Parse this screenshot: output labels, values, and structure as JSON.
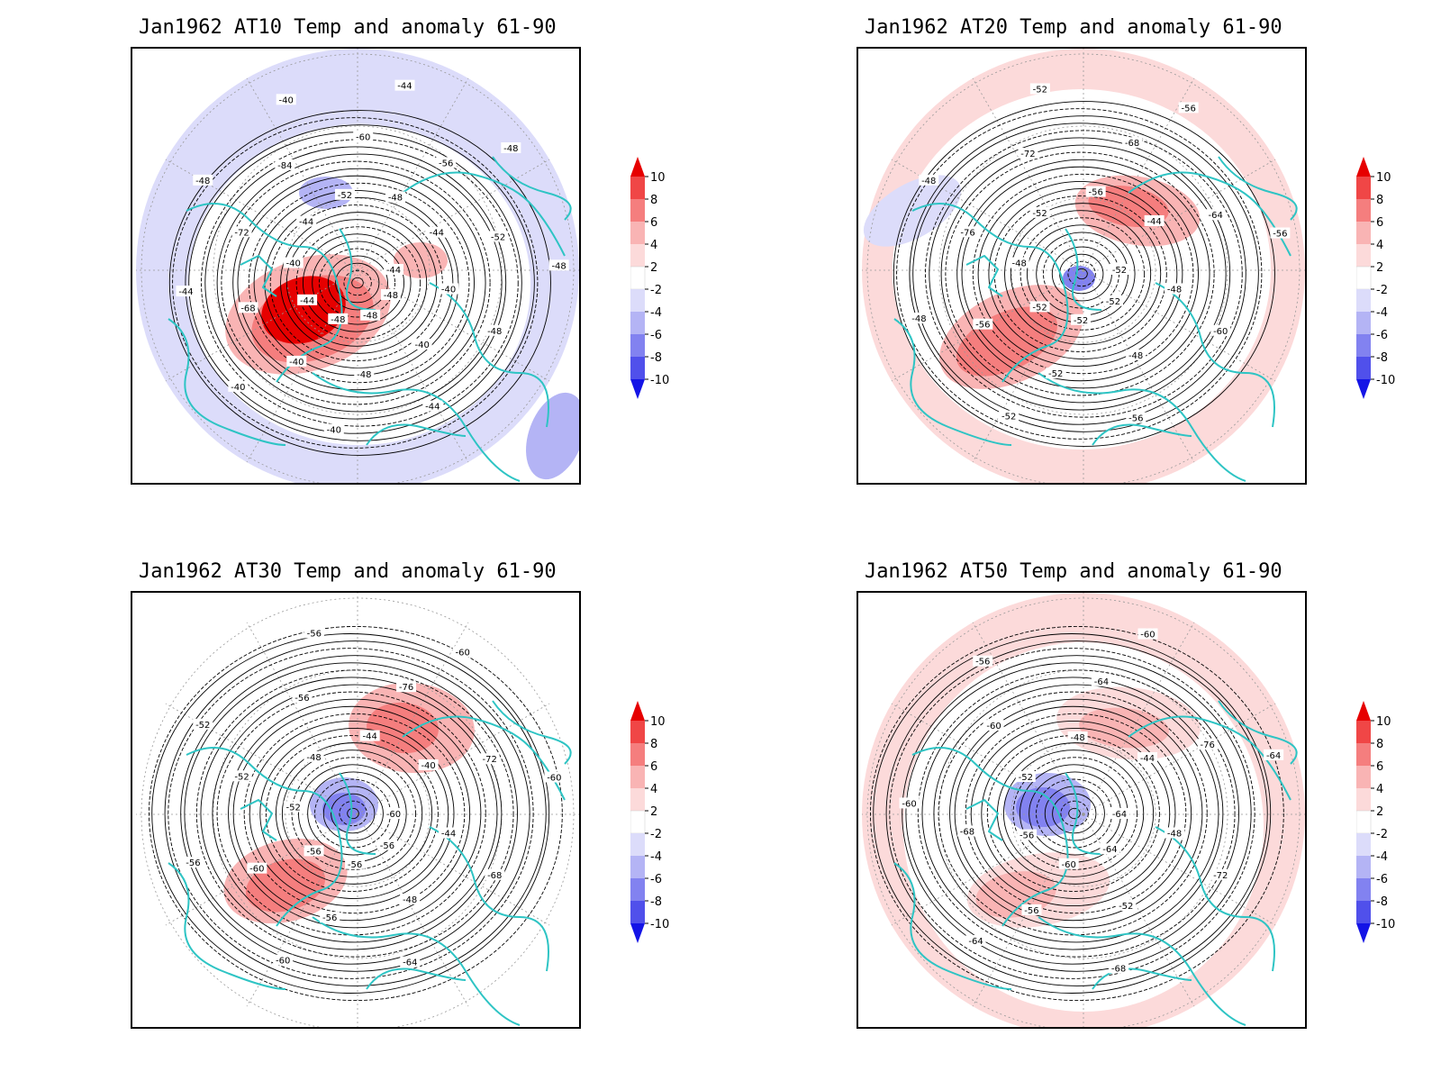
{
  "panels": [
    {
      "title": "Jan1962 AT10 Temp and anomaly 61-90",
      "labels": [
        "-44",
        "-48",
        "-48",
        "-48",
        "-44",
        "-40",
        "-44",
        "-52",
        "-48",
        "-44",
        "-40",
        "-40",
        "-48",
        "-40",
        "-68",
        "-72",
        "-84",
        "-60",
        "-56",
        "-52",
        "-48",
        "-44",
        "-40",
        "-40",
        "-44",
        "-48",
        "-40",
        "-44",
        "-48",
        "-48"
      ]
    },
    {
      "title": "Jan1962 AT20 Temp and anomaly 61-90",
      "labels": [
        "-52",
        "-52",
        "-52",
        "-52",
        "-48",
        "-52",
        "-56",
        "-44",
        "-48",
        "-48",
        "-52",
        "-56",
        "-76",
        "-72",
        "-68",
        "-64",
        "-60",
        "-56",
        "-52",
        "-48",
        "-48",
        "-52",
        "-56",
        "-56"
      ]
    },
    {
      "title": "Jan1962 AT30 Temp and anomaly 61-90",
      "labels": [
        "-60",
        "-56",
        "-56",
        "-56",
        "-52",
        "-48",
        "-44",
        "-40",
        "-44",
        "-48",
        "-56",
        "-60",
        "-52",
        "-56",
        "-76",
        "-72",
        "-68",
        "-64",
        "-60",
        "-56",
        "-52",
        "-56",
        "-60",
        "-60"
      ]
    },
    {
      "title": "Jan1962 AT50 Temp and anomaly 61-90",
      "labels": [
        "-64",
        "-64",
        "-60",
        "-56",
        "-52",
        "-48",
        "-44",
        "-48",
        "-52",
        "-56",
        "-68",
        "-60",
        "-64",
        "-76",
        "-72",
        "-68",
        "-64",
        "-60",
        "-56",
        "-60",
        "-64"
      ]
    }
  ],
  "colorbar": {
    "ticks": [
      "10",
      "8",
      "6",
      "4",
      "2",
      "-2",
      "-4",
      "-6",
      "-8",
      "-10"
    ],
    "colors": [
      "#e60000",
      "#f04646",
      "#f57e7e",
      "#f9b4b4",
      "#fcdada",
      "#ffffff",
      "#dcdcfa",
      "#b4b4f5",
      "#8282f0",
      "#5050eb",
      "#1414e6"
    ]
  },
  "map_colors": {
    "coast": "#2ec4c4",
    "contour": "#000000"
  }
}
